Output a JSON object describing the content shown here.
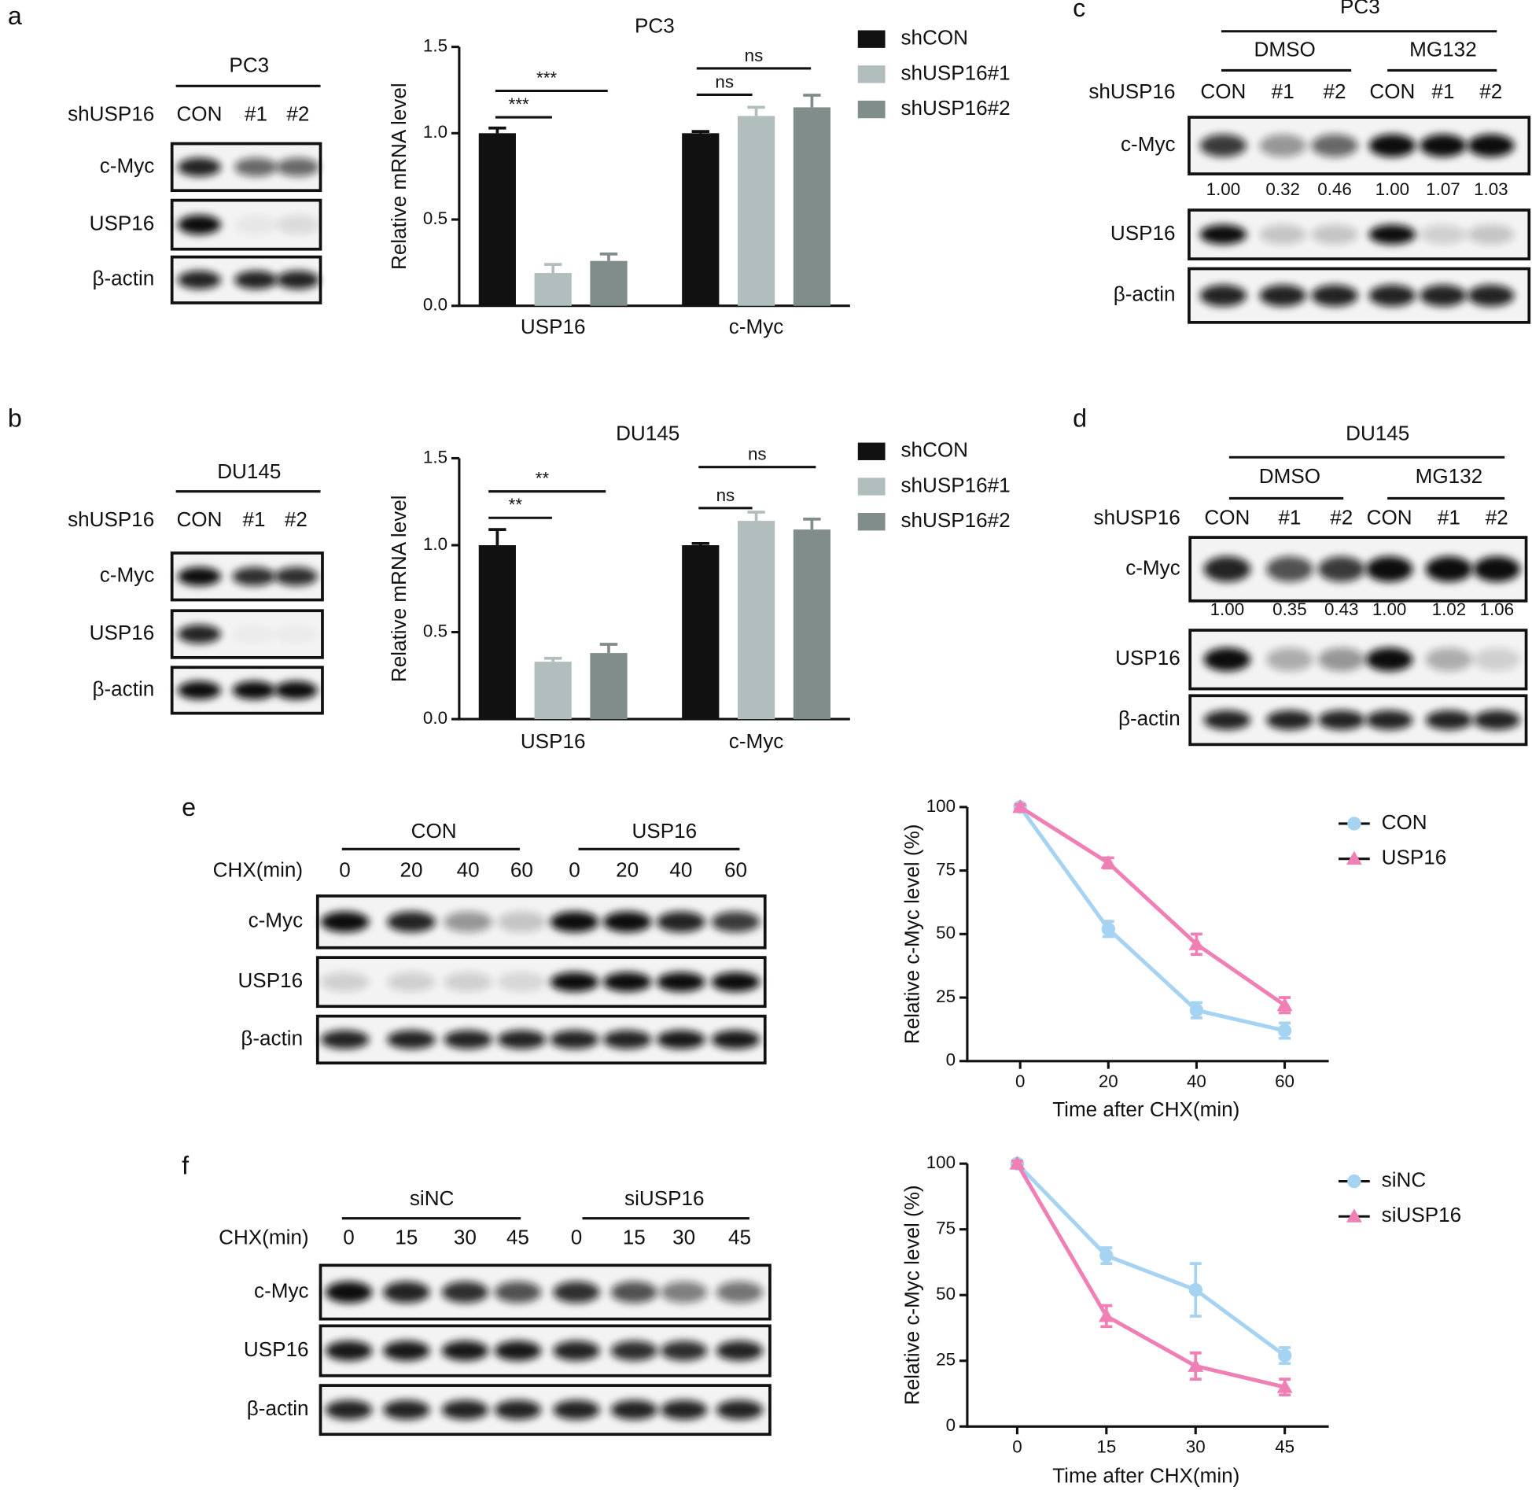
{
  "panels": [
    "a",
    "b",
    "c",
    "d",
    "e",
    "f"
  ],
  "blots": {
    "a": {
      "cell_line": "PC3",
      "row_header": "shUSP16",
      "lanes": [
        "CON",
        "#1",
        "#2"
      ],
      "rows": [
        "c-Myc",
        "USP16",
        "β-actin"
      ]
    },
    "b": {
      "cell_line": "DU145",
      "row_header": "shUSP16",
      "lanes": [
        "CON",
        "#1",
        "#2"
      ],
      "rows": [
        "c-Myc",
        "USP16",
        "β-actin"
      ]
    },
    "c": {
      "cell_line": "PC3",
      "groups": [
        "DMSO",
        "MG132"
      ],
      "row_header": "shUSP16",
      "lanes": [
        "CON",
        "#1",
        "#2",
        "CON",
        "#1",
        "#2"
      ],
      "rows": [
        "c-Myc",
        "USP16",
        "β-actin"
      ],
      "quantification": [
        "1.00",
        "0.32",
        "0.46",
        "1.00",
        "1.07",
        "1.03"
      ]
    },
    "d": {
      "cell_line": "DU145",
      "groups": [
        "DMSO",
        "MG132"
      ],
      "row_header": "shUSP16",
      "lanes": [
        "CON",
        "#1",
        "#2",
        "CON",
        "#1",
        "#2"
      ],
      "rows": [
        "c-Myc",
        "USP16",
        "β-actin"
      ],
      "quantification": [
        "1.00",
        "0.35",
        "0.43",
        "1.00",
        "1.02",
        "1.06"
      ]
    },
    "e": {
      "groups": [
        "CON",
        "USP16"
      ],
      "row_header": "CHX(min)",
      "lanes": [
        "0",
        "20",
        "40",
        "60",
        "0",
        "20",
        "40",
        "60"
      ],
      "rows": [
        "c-Myc",
        "USP16",
        "β-actin"
      ]
    },
    "f": {
      "groups": [
        "siNC",
        "siUSP16"
      ],
      "row_header": "CHX(min)",
      "lanes": [
        "0",
        "15",
        "30",
        "45",
        "0",
        "15",
        "30",
        "45"
      ],
      "rows": [
        "c-Myc",
        "USP16",
        "β-actin"
      ]
    }
  },
  "chart_data": [
    {
      "type": "bar",
      "title": "PC3",
      "y_label": "Relative mRNA level",
      "categories": [
        "USP16",
        "c-Myc"
      ],
      "series": [
        {
          "name": "shCON",
          "color": "#111111",
          "values": [
            1.0,
            1.0
          ],
          "errors": [
            0.03,
            0.01
          ]
        },
        {
          "name": "shUSP16#1",
          "color": "#b2bebe",
          "values": [
            0.19,
            1.1
          ],
          "errors": [
            0.05,
            0.05
          ]
        },
        {
          "name": "shUSP16#2",
          "color": "#808d8b",
          "values": [
            0.26,
            1.15
          ],
          "errors": [
            0.04,
            0.07
          ]
        }
      ],
      "ylim": [
        0,
        1.5
      ],
      "yticks": [
        {
          "value": 0,
          "label": "0.0"
        },
        {
          "value": 0.5,
          "label": "0.5"
        },
        {
          "value": 1,
          "label": "1.0"
        },
        {
          "value": 1.5,
          "label": "1.5"
        }
      ],
      "annotations": [
        "***",
        "***",
        "ns",
        "ns"
      ]
    },
    {
      "type": "bar",
      "title": "DU145",
      "y_label": "Relative mRNA level",
      "categories": [
        "USP16",
        "c-Myc"
      ],
      "series": [
        {
          "name": "shCON",
          "color": "#111111",
          "values": [
            1.0,
            1.0
          ],
          "errors": [
            0.09,
            0.01
          ]
        },
        {
          "name": "shUSP16#1",
          "color": "#b2bebe",
          "values": [
            0.33,
            1.14
          ],
          "errors": [
            0.02,
            0.05
          ]
        },
        {
          "name": "shUSP16#2",
          "color": "#808d8b",
          "values": [
            0.38,
            1.09
          ],
          "errors": [
            0.05,
            0.06
          ]
        }
      ],
      "ylim": [
        0,
        1.5
      ],
      "yticks": [
        {
          "value": 0,
          "label": "0.0"
        },
        {
          "value": 0.5,
          "label": "0.5"
        },
        {
          "value": 1,
          "label": "1.0"
        },
        {
          "value": 1.5,
          "label": "1.5"
        }
      ],
      "annotations": [
        "**",
        "**",
        "ns",
        "ns"
      ]
    },
    {
      "type": "line",
      "y_label": "Relative c-Myc  level (%)",
      "x_label": "Time after CHX(min)",
      "x": [
        0,
        20,
        40,
        60
      ],
      "xlim": [
        -12,
        70
      ],
      "xticks": [
        0,
        20,
        40,
        60
      ],
      "ylim": [
        0,
        100
      ],
      "yticks": [
        0,
        25,
        50,
        75,
        100
      ],
      "series": [
        {
          "name": "CON",
          "color": "#a6d3f2",
          "marker": "circle",
          "values": [
            100,
            52,
            20,
            12
          ],
          "errors": [
            1,
            3,
            3,
            3
          ]
        },
        {
          "name": "USP16",
          "color": "#ef7fb5",
          "marker": "triangle",
          "values": [
            100,
            78,
            46,
            22
          ],
          "errors": [
            1,
            2,
            4,
            3
          ]
        }
      ]
    },
    {
      "type": "line",
      "y_label": "Relative c-Myc  level (%)",
      "x_label": "Time after CHX(min)",
      "x": [
        0,
        15,
        30,
        45
      ],
      "xlim": [
        -8.4,
        52.4
      ],
      "xticks": [
        0,
        15,
        30,
        45
      ],
      "ylim": [
        0,
        100
      ],
      "yticks": [
        0,
        25,
        50,
        75,
        100
      ],
      "series": [
        {
          "name": "siNC",
          "color": "#a6d3f2",
          "marker": "circle",
          "values": [
            100,
            65,
            52,
            27
          ],
          "errors": [
            1,
            3,
            10,
            3
          ]
        },
        {
          "name": "siUSP16",
          "color": "#ef7fb5",
          "marker": "triangle",
          "values": [
            100,
            42,
            23,
            15
          ],
          "errors": [
            1,
            4,
            5,
            3
          ]
        }
      ]
    }
  ]
}
